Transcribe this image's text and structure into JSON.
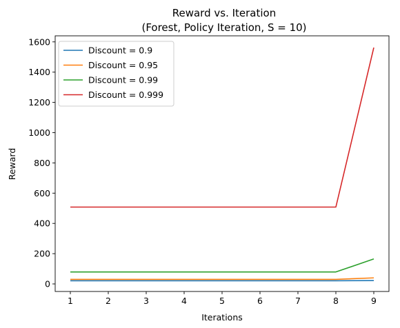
{
  "chart_data": {
    "type": "line",
    "title": "Reward vs. Iteration",
    "subtitle": "(Forest, Policy Iteration, S = 10)",
    "xlabel": "Iterations",
    "ylabel": "Reward",
    "x": [
      1,
      2,
      3,
      4,
      5,
      6,
      7,
      8,
      9
    ],
    "xticks": [
      "1",
      "2",
      "3",
      "4",
      "5",
      "6",
      "7",
      "8",
      "9"
    ],
    "yticks": [
      "0",
      "200",
      "400",
      "600",
      "800",
      "1000",
      "1200",
      "1400",
      "1600"
    ],
    "xlim": [
      0.6,
      9.4
    ],
    "ylim": [
      -50,
      1640
    ],
    "grid": false,
    "legend_position": "top-left",
    "series": [
      {
        "name": "Discount = 0.9",
        "color": "#1f77b4",
        "values": [
          21,
          21,
          21,
          21,
          21,
          21,
          21,
          21,
          22
        ]
      },
      {
        "name": "Discount = 0.95",
        "color": "#ff7f0e",
        "values": [
          30,
          30,
          30,
          30,
          30,
          30,
          30,
          30,
          40
        ]
      },
      {
        "name": "Discount = 0.99",
        "color": "#2ca02c",
        "values": [
          79,
          79,
          79,
          79,
          79,
          79,
          79,
          79,
          165
        ]
      },
      {
        "name": "Discount = 0.999",
        "color": "#d62728",
        "values": [
          508,
          508,
          508,
          508,
          508,
          508,
          508,
          508,
          1562
        ]
      }
    ]
  }
}
